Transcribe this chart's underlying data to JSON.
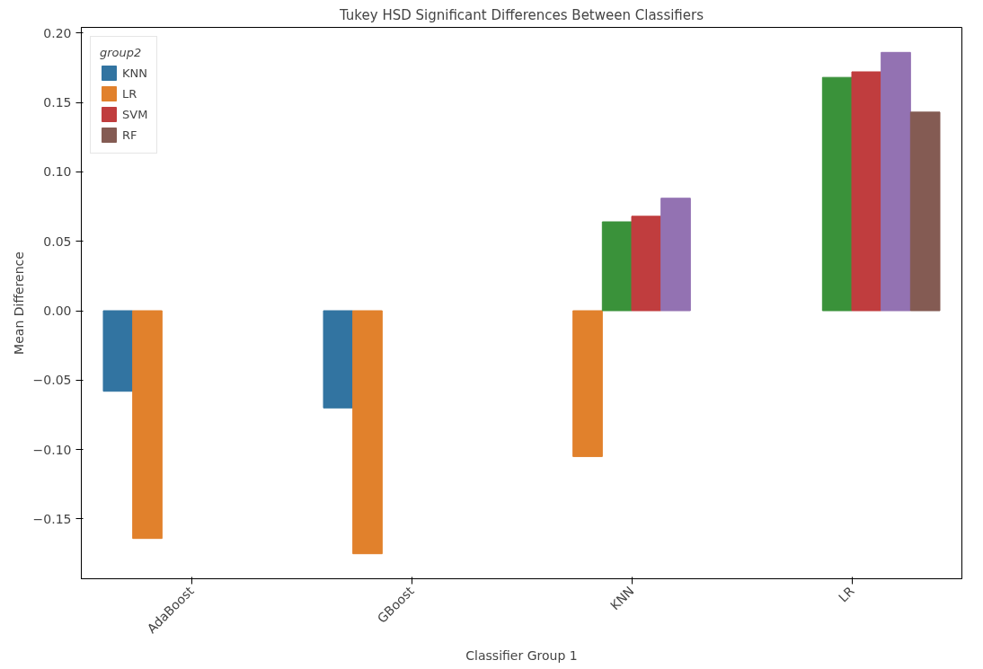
{
  "chart_data": {
    "type": "bar",
    "title": "Tukey HSD Significant Differences Between Classifiers",
    "xlabel": "Classifier Group 1",
    "ylabel": "Mean Difference",
    "legend_title": "group2",
    "categories": [
      "AdaBoost",
      "GBoost",
      "KNN",
      "LR"
    ],
    "series": [
      {
        "name": "KNN",
        "color": "#3274a1",
        "values": [
          -0.058,
          -0.07,
          null,
          null
        ]
      },
      {
        "name": "LR",
        "color": "#e1812c",
        "values": [
          -0.164,
          -0.175,
          -0.105,
          null
        ]
      },
      {
        "color": "#3a923a",
        "values": [
          null,
          null,
          0.064,
          0.168
        ]
      },
      {
        "name": "SVM",
        "color": "#c03d3e",
        "values": [
          null,
          null,
          0.068,
          0.172
        ]
      },
      {
        "color": "#9372b2",
        "values": [
          null,
          null,
          0.081,
          0.186
        ]
      },
      {
        "name": "RF",
        "color": "#845b53",
        "values": [
          null,
          null,
          null,
          0.143
        ]
      }
    ],
    "ylim": [
      -0.193,
      0.204
    ],
    "yticks": [
      {
        "value": -0.15,
        "label": "−0.15"
      },
      {
        "value": -0.1,
        "label": "−0.10"
      },
      {
        "value": -0.05,
        "label": "−0.05"
      },
      {
        "value": 0,
        "label": "0.00"
      },
      {
        "value": 0.05,
        "label": "0.05"
      },
      {
        "value": 0.1,
        "label": "0.10"
      },
      {
        "value": 0.15,
        "label": "0.15"
      },
      {
        "value": 0.2,
        "label": "0.20"
      }
    ],
    "grid": false,
    "legend": "top left"
  }
}
